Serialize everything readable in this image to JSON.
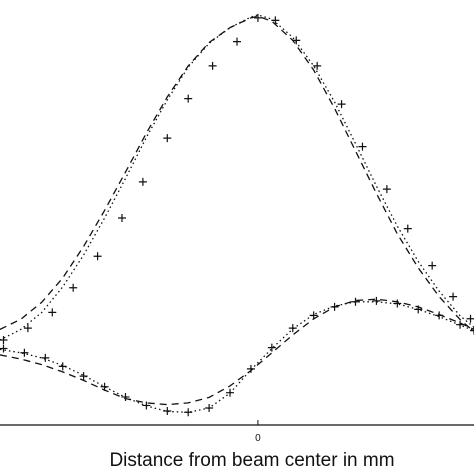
{
  "chart_data": {
    "type": "line",
    "title": "",
    "xlabel": "Distance from beam center in mm",
    "ylabel": "",
    "x_ticks": [
      {
        "value": 0,
        "label": "0"
      }
    ],
    "xlim": [
      -7.4,
      6.2
    ],
    "ylim": [
      0,
      1
    ],
    "grid": false,
    "legend": "none",
    "series": [
      {
        "style": "dashed",
        "x": [
          -7.4,
          -6.8,
          -6.2,
          -5.6,
          -5.0,
          -4.4,
          -3.8,
          -3.2,
          -2.6,
          -2.0,
          -1.4,
          -0.8,
          -0.2,
          0.0,
          0.4,
          1.0,
          1.6,
          2.2,
          2.8,
          3.4,
          4.0,
          4.6,
          5.2,
          5.8,
          6.2
        ],
        "y": [
          0.225,
          0.249,
          0.289,
          0.346,
          0.42,
          0.505,
          0.595,
          0.687,
          0.772,
          0.845,
          0.9,
          0.935,
          0.958,
          0.962,
          0.95,
          0.905,
          0.835,
          0.745,
          0.645,
          0.545,
          0.45,
          0.37,
          0.302,
          0.248,
          0.22
        ]
      },
      {
        "style": "dotted",
        "x": [
          -7.4,
          -6.8,
          -6.2,
          -5.6,
          -5.0,
          -4.4,
          -3.8,
          -3.2,
          -2.6,
          -2.0,
          -1.4,
          -0.8,
          -0.2,
          0.0,
          0.4,
          1.0,
          1.6,
          2.2,
          2.8,
          3.4,
          4.0,
          4.6,
          5.2,
          5.8,
          6.2
        ],
        "y": [
          0.2,
          0.225,
          0.265,
          0.325,
          0.4,
          0.487,
          0.58,
          0.677,
          0.765,
          0.842,
          0.898,
          0.935,
          0.96,
          0.965,
          0.955,
          0.912,
          0.845,
          0.76,
          0.662,
          0.562,
          0.468,
          0.385,
          0.315,
          0.257,
          0.23
        ]
      },
      {
        "style": "markers",
        "marker": "+",
        "x": [
          -7.3,
          -6.6,
          -5.9,
          -5.3,
          -4.6,
          -3.9,
          -3.3,
          -2.6,
          -2.0,
          -1.3,
          -0.6,
          0.0,
          0.5,
          1.1,
          1.7,
          2.4,
          3.0,
          3.7,
          4.3,
          5.0,
          5.6,
          6.1
        ],
        "y": [
          0.2,
          0.228,
          0.265,
          0.323,
          0.397,
          0.487,
          0.572,
          0.675,
          0.768,
          0.845,
          0.902,
          0.958,
          0.952,
          0.905,
          0.845,
          0.755,
          0.655,
          0.555,
          0.462,
          0.375,
          0.302,
          0.25
        ]
      },
      {
        "style": "dashed",
        "x": [
          -7.4,
          -6.8,
          -6.2,
          -5.6,
          -5.0,
          -4.4,
          -3.8,
          -3.2,
          -2.6,
          -2.0,
          -1.4,
          -0.8,
          -0.2,
          0.4,
          1.0,
          1.6,
          2.2,
          2.8,
          3.4,
          4.0,
          4.6,
          5.2,
          5.8,
          6.2
        ],
        "y": [
          0.165,
          0.155,
          0.142,
          0.125,
          0.105,
          0.082,
          0.062,
          0.052,
          0.048,
          0.052,
          0.065,
          0.092,
          0.128,
          0.17,
          0.212,
          0.25,
          0.278,
          0.293,
          0.296,
          0.29,
          0.278,
          0.26,
          0.24,
          0.225
        ]
      },
      {
        "style": "dotted",
        "x": [
          -7.4,
          -6.8,
          -6.2,
          -5.6,
          -5.0,
          -4.4,
          -3.8,
          -3.2,
          -2.6,
          -2.0,
          -1.4,
          -0.8,
          -0.2,
          0.4,
          1.0,
          1.6,
          2.2,
          2.8,
          3.4,
          4.0,
          4.6,
          5.2,
          5.8,
          6.2
        ],
        "y": [
          0.178,
          0.17,
          0.158,
          0.14,
          0.117,
          0.09,
          0.065,
          0.045,
          0.032,
          0.03,
          0.04,
          0.075,
          0.13,
          0.18,
          0.226,
          0.26,
          0.28,
          0.29,
          0.29,
          0.285,
          0.272,
          0.255,
          0.235,
          0.222
        ]
      },
      {
        "style": "markers",
        "marker": "+",
        "x": [
          -7.3,
          -6.7,
          -6.1,
          -5.6,
          -5.0,
          -4.4,
          -3.8,
          -3.2,
          -2.6,
          -2.0,
          -1.4,
          -0.8,
          -0.2,
          0.4,
          1.0,
          1.6,
          2.2,
          2.8,
          3.4,
          4.0,
          4.6,
          5.2,
          5.8,
          6.2
        ],
        "y": [
          0.18,
          0.17,
          0.158,
          0.138,
          0.115,
          0.09,
          0.066,
          0.046,
          0.033,
          0.03,
          0.04,
          0.076,
          0.132,
          0.182,
          0.228,
          0.258,
          0.278,
          0.29,
          0.292,
          0.286,
          0.272,
          0.258,
          0.236,
          0.222
        ]
      }
    ]
  }
}
